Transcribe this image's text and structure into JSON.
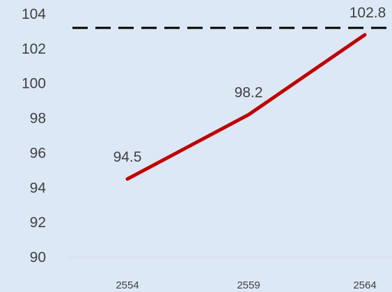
{
  "chart_data": {
    "type": "line",
    "title": "",
    "xlabel": "",
    "ylabel": "",
    "x": [
      "2554",
      "2559",
      "2564"
    ],
    "ylim": [
      90,
      104
    ],
    "yticks": [
      90,
      92,
      94,
      96,
      98,
      100,
      102,
      104
    ],
    "series": [
      {
        "values": [
          94.5,
          98.2,
          102.8
        ],
        "data_labels": [
          "94.5",
          "98.2",
          "102.8"
        ],
        "color": "#c00000"
      }
    ],
    "reference_line": {
      "value": 103.2,
      "style": "dashed",
      "color": "#000000"
    },
    "grid": false,
    "legend": "none",
    "background_color": "#dce8f5",
    "axis_line_color": "#d9d9d9"
  }
}
